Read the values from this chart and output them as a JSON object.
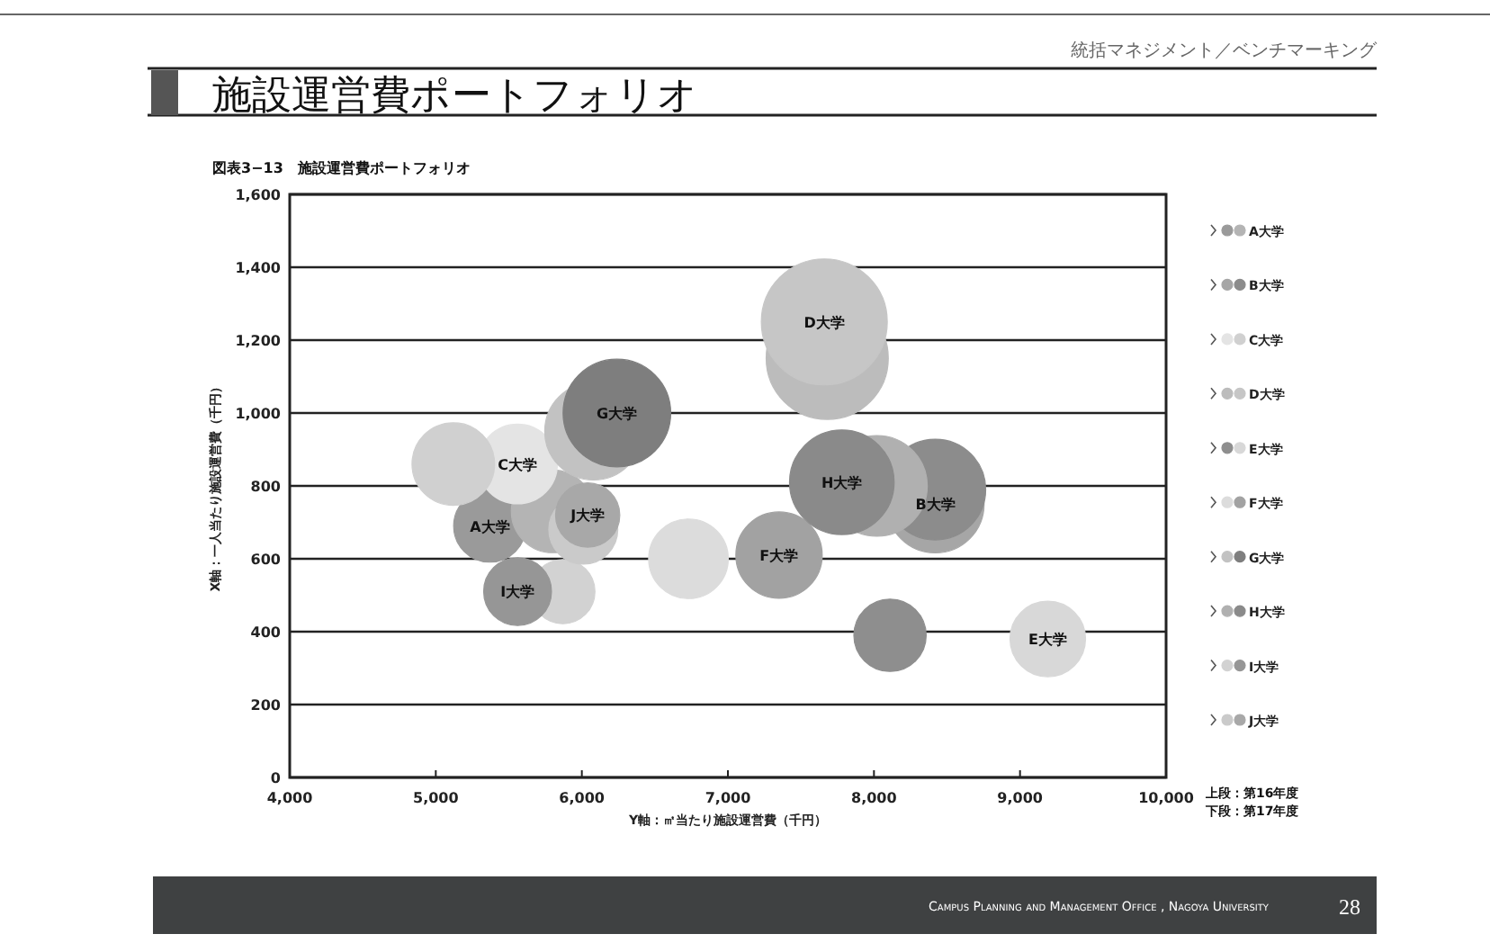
{
  "chart_data": {
    "type": "bubble",
    "title": "施設運営費ポートフォリオ",
    "subtitle": "図表3−13　施設運営費ポートフォリオ",
    "xlabel": "Y軸：㎡当たり施設運営費（千円）",
    "ylabel": "X軸：一人当たり施設運営費（千円）",
    "xlim": [
      4000,
      10000
    ],
    "ylim": [
      0,
      1600
    ],
    "xticks": [
      {
        "value": 4000,
        "label": "4,000"
      },
      {
        "value": 5000,
        "label": "5,000"
      },
      {
        "value": 6000,
        "label": "6,000"
      },
      {
        "value": 7000,
        "label": "7,000"
      },
      {
        "value": 8000,
        "label": "8,000"
      },
      {
        "value": 9000,
        "label": "9,000"
      },
      {
        "value": 10000,
        "label": "10,000"
      }
    ],
    "yticks": [
      0,
      200,
      400,
      600,
      800,
      {
        "value": 1000,
        "label": "1,000"
      },
      {
        "value": 1200,
        "label": "1,200"
      },
      {
        "value": 1400,
        "label": "1,400"
      },
      {
        "value": 1600,
        "label": "1,600"
      }
    ],
    "grid": "y",
    "legend": "right",
    "series": [
      {
        "name": "A大学",
        "colors": [
          "#9a9a9a",
          "#b4b4b4"
        ],
        "x": [
          5370,
          5800
        ],
        "values": [
          690,
          730
        ],
        "sizes": [
          0.33,
          0.43
        ]
      },
      {
        "name": "B大学",
        "colors": [
          "#a6a6a6",
          "#8c8c8c"
        ],
        "x": [
          8420,
          8420
        ],
        "values": [
          750,
          790
        ],
        "sizes": [
          0.6,
          0.64
        ]
      },
      {
        "name": "C大学",
        "colors": [
          "#e4e4e4",
          "#d0d0d0"
        ],
        "x": [
          5560,
          5120
        ],
        "values": [
          860,
          860
        ],
        "sizes": [
          0.4,
          0.43
        ]
      },
      {
        "name": "D大学",
        "colors": [
          "#bcbcbc",
          "#c6c6c6"
        ],
        "x": [
          7680,
          7660
        ],
        "values": [
          1150,
          1250
        ],
        "sizes": [
          0.94,
          1
        ]
      },
      {
        "name": "E大学",
        "colors": [
          "#8e8e8e",
          "#d8d8d8"
        ],
        "x": [
          8110,
          9190
        ],
        "values": [
          390,
          380
        ],
        "sizes": [
          0.33,
          0.36
        ]
      },
      {
        "name": "F大学",
        "colors": [
          "#dcdcdc",
          "#a2a2a2"
        ],
        "x": [
          6730,
          7350
        ],
        "values": [
          600,
          610
        ],
        "sizes": [
          0.4,
          0.47
        ]
      },
      {
        "name": "G大学",
        "colors": [
          "#c2c2c2",
          "#7e7e7e"
        ],
        "x": [
          6080,
          6240
        ],
        "values": [
          950,
          1000
        ],
        "sizes": [
          0.6,
          0.73
        ]
      },
      {
        "name": "H大学",
        "colors": [
          "#b0b0b0",
          "#8a8a8a"
        ],
        "x": [
          8020,
          7780
        ],
        "values": [
          800,
          810
        ],
        "sizes": [
          0.64,
          0.69
        ]
      },
      {
        "name": "I大学",
        "colors": [
          "#d2d2d2",
          "#969696"
        ],
        "x": [
          5870,
          5560
        ],
        "values": [
          510,
          510
        ],
        "sizes": [
          0.26,
          0.29
        ]
      },
      {
        "name": "J大学",
        "colors": [
          "#cacaca",
          "#a8a8a8"
        ],
        "x": [
          6010,
          6040
        ],
        "values": [
          680,
          720
        ],
        "sizes": [
          0.3,
          0.26
        ]
      }
    ],
    "annotations": [
      {
        "text": "A大学",
        "x": 5370,
        "y": 690
      },
      {
        "text": "B大学",
        "x": 8420,
        "y": 750
      },
      {
        "text": "C大学",
        "x": 5560,
        "y": 860
      },
      {
        "text": "D大学",
        "x": 7660,
        "y": 1250
      },
      {
        "text": "E大学",
        "x": 9190,
        "y": 380
      },
      {
        "text": "F大学",
        "x": 7350,
        "y": 610
      },
      {
        "text": "G大学",
        "x": 6240,
        "y": 1000
      },
      {
        "text": "H大学",
        "x": 7780,
        "y": 810
      },
      {
        "text": "I大学",
        "x": 5560,
        "y": 510
      },
      {
        "text": "J大学",
        "x": 6040,
        "y": 720
      },
      "上段：第16年度",
      "下段：第17年度",
      "統括マネジメント／ベンチマーキング",
      "Campus Planning and Management Office , Nagoya University",
      "28"
    ]
  }
}
